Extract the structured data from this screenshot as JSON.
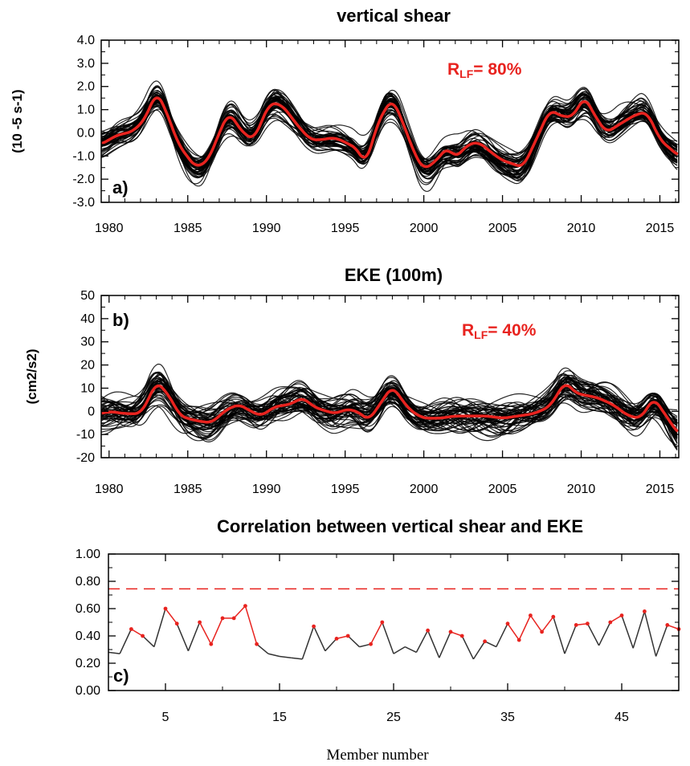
{
  "chart_data": [
    {
      "type": "line",
      "title": "vertical shear",
      "panel_label": "a)",
      "ylabel": "(10 -5 s-1)",
      "ylim": [
        -3.0,
        4.0
      ],
      "xlim": [
        1979.5,
        2016.2
      ],
      "x_ticks": [
        1980,
        1985,
        1990,
        1995,
        2000,
        2005,
        2010,
        2015
      ],
      "y_ticks": [
        "-3.0",
        "-2.0",
        "-1.0",
        "0.0",
        "1.0",
        "2.0",
        "3.0",
        "4.0"
      ],
      "annotation": {
        "main": "R",
        "sub": "LF",
        "value": "= 80%"
      },
      "ensemble": {
        "members": 50,
        "color": "#000000",
        "spread": 0.5
      },
      "series": [
        {
          "name": "ensemble mean",
          "color": "#e8231f",
          "x": [
            1979.5,
            1980.5,
            1981.5,
            1982.3,
            1983.0,
            1983.6,
            1984.4,
            1985.5,
            1986.3,
            1987.0,
            1987.6,
            1988.5,
            1989.2,
            1990.2,
            1991.0,
            1992.0,
            1992.8,
            1993.5,
            1994.3,
            1995.0,
            1995.8,
            1996.3,
            1997.1,
            1998.0,
            1998.7,
            1999.4,
            2000.0,
            2000.8,
            2001.5,
            2002.0,
            2002.8,
            2003.5,
            2004.2,
            2005.0,
            2005.5,
            2006.3,
            2007.0,
            2008.0,
            2008.8,
            2009.5,
            2010.2,
            2010.9,
            2011.6,
            2012.5,
            2013.5,
            2014.2,
            2015.0,
            2016.2
          ],
          "y": [
            -0.5,
            -0.1,
            0.05,
            0.6,
            1.8,
            1.0,
            -0.5,
            -1.5,
            -1.2,
            0.0,
            0.9,
            0.0,
            -0.3,
            1.3,
            1.2,
            0.3,
            -0.3,
            -0.3,
            -0.2,
            -0.4,
            -0.7,
            -1.4,
            0.5,
            1.5,
            0.4,
            -0.9,
            -1.6,
            -1.2,
            -0.6,
            -1.1,
            -0.5,
            -0.4,
            -0.8,
            -1.2,
            -1.3,
            -1.5,
            -0.5,
            1.0,
            0.7,
            0.7,
            1.6,
            0.7,
            0.0,
            0.4,
            0.8,
            0.9,
            -0.3,
            -1.0
          ]
        }
      ]
    },
    {
      "type": "line",
      "title": "EKE (100m)",
      "panel_label": "b)",
      "ylabel": "(cm2/s2)",
      "ylim": [
        -20,
        50
      ],
      "xlim": [
        1979.5,
        2016.2
      ],
      "x_ticks": [
        1980,
        1985,
        1990,
        1995,
        2000,
        2005,
        2010,
        2015
      ],
      "y_ticks": [
        "-20",
        "-10",
        "0",
        "10",
        "20",
        "30",
        "40",
        "50"
      ],
      "annotation": {
        "main": "R",
        "sub": "LF",
        "value": "= 40%"
      },
      "ensemble": {
        "members": 50,
        "color": "#000000",
        "spread": 6
      },
      "series": [
        {
          "name": "ensemble mean",
          "color": "#e8231f",
          "x": [
            1979.5,
            1980.0,
            1981.0,
            1982.0,
            1982.5,
            1983.0,
            1983.8,
            1984.5,
            1985.5,
            1986.5,
            1987.5,
            1988.3,
            1989.0,
            1989.7,
            1990.5,
            1991.5,
            1992.3,
            1993.0,
            1993.8,
            1994.5,
            1995.0,
            1995.8,
            1996.5,
            1997.2,
            1998.0,
            1998.6,
            1999.2,
            2000.0,
            2001.0,
            2002.0,
            2003.0,
            2004.0,
            2005.0,
            2006.0,
            2007.0,
            2008.0,
            2009.0,
            2009.6,
            2010.2,
            2011.0,
            2012.0,
            2013.0,
            2013.8,
            2014.6,
            2015.3,
            2016.2
          ],
          "y": [
            -1,
            0,
            -1,
            -1,
            5,
            13,
            7,
            -2,
            -4,
            -5,
            1,
            3,
            0,
            -2,
            2,
            3,
            6,
            2,
            0,
            -1,
            1,
            0,
            -4,
            3,
            11,
            5,
            0,
            -3,
            -3,
            -2,
            -2,
            -2,
            -3,
            -2,
            -1,
            2,
            13,
            8,
            7,
            6,
            3,
            -2,
            -3,
            6,
            -1,
            -10
          ]
        }
      ]
    },
    {
      "type": "line",
      "title": "Correlation between vertical shear and EKE",
      "panel_label": "c)",
      "xlabel": "Member number",
      "ylim": [
        0.0,
        1.0
      ],
      "xlim": [
        0,
        50
      ],
      "x_ticks": [
        5,
        15,
        25,
        35,
        45
      ],
      "y_ticks": [
        "0.00",
        "0.20",
        "0.40",
        "0.60",
        "0.80",
        "1.00"
      ],
      "reference_line": {
        "value": 0.745,
        "color": "#e8231f",
        "style": "dashed"
      },
      "series": [
        {
          "name": "correlation",
          "color": "#333333",
          "highlight_color": "#e8231f",
          "x": [
            0,
            1,
            2,
            3,
            4,
            5,
            6,
            7,
            8,
            9,
            10,
            11,
            12,
            13,
            14,
            15,
            16,
            17,
            18,
            19,
            20,
            21,
            22,
            23,
            24,
            25,
            26,
            27,
            28,
            29,
            30,
            31,
            32,
            33,
            34,
            35,
            36,
            37,
            38,
            39,
            40,
            41,
            42,
            43,
            44,
            45,
            46,
            47,
            48,
            49,
            50
          ],
          "y": [
            0.28,
            0.27,
            0.45,
            0.4,
            0.32,
            0.6,
            0.49,
            0.29,
            0.5,
            0.34,
            0.53,
            0.53,
            0.62,
            0.34,
            0.27,
            0.25,
            0.24,
            0.23,
            0.47,
            0.29,
            0.38,
            0.4,
            0.32,
            0.34,
            0.5,
            0.27,
            0.32,
            0.28,
            0.44,
            0.24,
            0.43,
            0.4,
            0.23,
            0.36,
            0.32,
            0.49,
            0.37,
            0.55,
            0.43,
            0.54,
            0.27,
            0.48,
            0.49,
            0.33,
            0.5,
            0.55,
            0.31,
            0.58,
            0.25,
            0.48,
            0.45
          ],
          "significant": [
            false,
            false,
            true,
            true,
            false,
            true,
            true,
            false,
            true,
            true,
            true,
            true,
            true,
            true,
            false,
            false,
            false,
            false,
            true,
            false,
            true,
            true,
            false,
            true,
            true,
            false,
            false,
            false,
            true,
            false,
            true,
            true,
            false,
            true,
            false,
            true,
            true,
            true,
            true,
            true,
            false,
            true,
            true,
            false,
            true,
            true,
            false,
            true,
            false,
            true,
            true
          ]
        }
      ]
    }
  ]
}
